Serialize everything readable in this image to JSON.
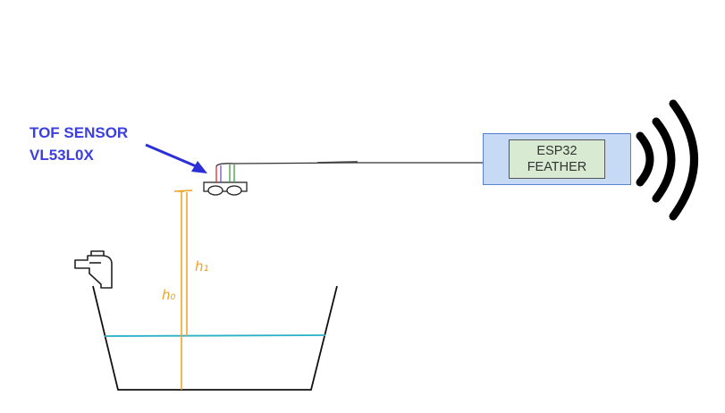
{
  "sensor": {
    "title_line1": "TOF SENSOR",
    "title_line2": "VL53L0X"
  },
  "controller": {
    "line1": "ESP32",
    "line2": "FEATHER"
  },
  "measurements": {
    "h1": "h₁",
    "h0": "h₀"
  },
  "colors": {
    "label_blue": "#3b3fe0",
    "water": "#2ab0c8",
    "measure_lines": "#f0a020",
    "esp_box_fill": "#c6d9f5",
    "esp_inner_fill": "#d9ead3",
    "wire_red": "#d03030",
    "wire_purple": "#7a4fc0",
    "wire_green": "#3aa040"
  },
  "icons": [
    "arrow-icon",
    "tap-icon",
    "wifi-signal-icon",
    "basin-icon",
    "sensor-board-icon"
  ]
}
